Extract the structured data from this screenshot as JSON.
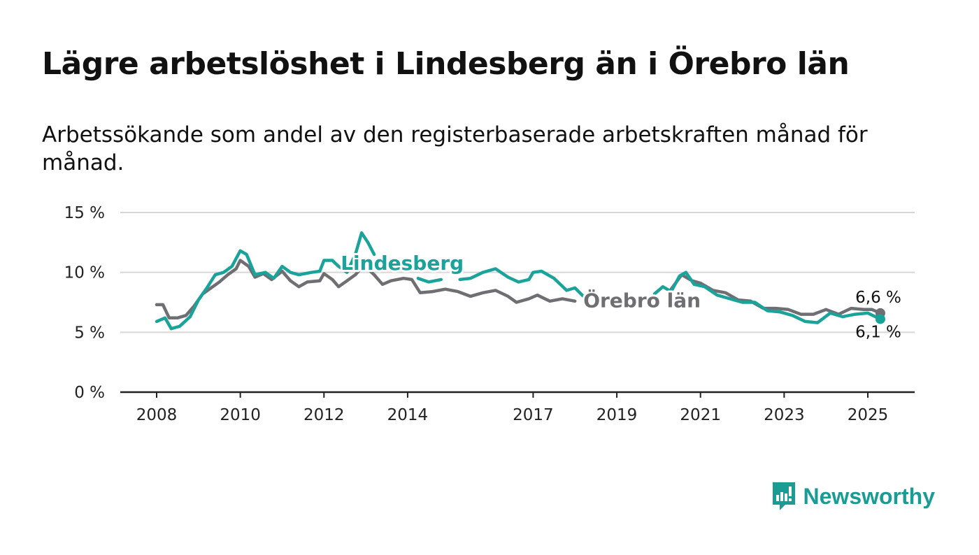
{
  "header": {
    "title": "Lägre arbetslöshet i Lindesberg än i Örebro län",
    "subtitle": "Arbetssökande som andel av den registerbaserade arbetskraften månad för månad."
  },
  "brand": {
    "name": "Newsworthy",
    "color": "#1a9c94",
    "icon": "bar-chart-bubble-icon"
  },
  "chart_data": {
    "type": "line",
    "y_ticks": [
      0,
      5,
      10,
      15
    ],
    "y_tick_labels": [
      "0 %",
      "5 %",
      "10 %",
      "15 %"
    ],
    "x_ticks": [
      2008,
      2010,
      2012,
      2014,
      2017,
      2019,
      2021,
      2023,
      2025
    ],
    "x_tick_labels": [
      "2008",
      "2010",
      "2012",
      "2014",
      "2017",
      "2019",
      "2021",
      "2023",
      "2025"
    ],
    "ylim": [
      0,
      15
    ],
    "xlim": [
      2007.2,
      2026.1
    ],
    "grid": true,
    "legend": "inline",
    "series": [
      {
        "name": "Örebro län",
        "color": "#6e6e73",
        "end_label": "6,6 %",
        "points": [
          [
            2008.0,
            7.3
          ],
          [
            2008.15,
            7.3
          ],
          [
            2008.3,
            6.2
          ],
          [
            2008.5,
            6.2
          ],
          [
            2008.7,
            6.4
          ],
          [
            2008.9,
            7.2
          ],
          [
            2009.1,
            8.2
          ],
          [
            2009.3,
            8.7
          ],
          [
            2009.5,
            9.2
          ],
          [
            2009.7,
            9.8
          ],
          [
            2009.9,
            10.3
          ],
          [
            2010.0,
            11.0
          ],
          [
            2010.2,
            10.5
          ],
          [
            2010.35,
            9.6
          ],
          [
            2010.55,
            9.9
          ],
          [
            2010.75,
            9.4
          ],
          [
            2011.0,
            10.1
          ],
          [
            2011.2,
            9.3
          ],
          [
            2011.4,
            8.8
          ],
          [
            2011.6,
            9.2
          ],
          [
            2011.9,
            9.3
          ],
          [
            2012.0,
            9.9
          ],
          [
            2012.2,
            9.4
          ],
          [
            2012.35,
            8.8
          ],
          [
            2012.55,
            9.3
          ],
          [
            2012.75,
            9.8
          ],
          [
            2012.95,
            10.6
          ],
          [
            2013.2,
            9.8
          ],
          [
            2013.4,
            9.0
          ],
          [
            2013.6,
            9.3
          ],
          [
            2013.9,
            9.5
          ],
          [
            2014.1,
            9.4
          ],
          [
            2014.3,
            8.3
          ],
          [
            2014.6,
            8.4
          ],
          [
            2014.9,
            8.6
          ],
          [
            2015.2,
            8.4
          ],
          [
            2015.5,
            8.0
          ],
          [
            2015.8,
            8.3
          ],
          [
            2016.1,
            8.5
          ],
          [
            2016.4,
            8.0
          ],
          [
            2016.6,
            7.5
          ],
          [
            2016.9,
            7.8
          ],
          [
            2017.1,
            8.1
          ],
          [
            2017.4,
            7.6
          ],
          [
            2017.7,
            7.8
          ],
          [
            2018.0,
            7.6
          ]
        ],
        "points_b": [
          [
            2020.3,
            8.6
          ],
          [
            2020.55,
            9.8
          ],
          [
            2020.8,
            9.3
          ],
          [
            2021.0,
            9.1
          ],
          [
            2021.3,
            8.5
          ],
          [
            2021.6,
            8.3
          ],
          [
            2021.9,
            7.7
          ],
          [
            2022.2,
            7.6
          ],
          [
            2022.5,
            7.0
          ],
          [
            2022.8,
            7.0
          ],
          [
            2023.1,
            6.9
          ],
          [
            2023.4,
            6.5
          ],
          [
            2023.7,
            6.5
          ],
          [
            2024.0,
            6.9
          ],
          [
            2024.3,
            6.5
          ],
          [
            2024.6,
            7.0
          ],
          [
            2024.9,
            6.9
          ],
          [
            2025.1,
            6.9
          ],
          [
            2025.3,
            6.6
          ]
        ]
      },
      {
        "name": "Lindesberg",
        "color": "#1aa39a",
        "end_label": "6,1 %",
        "points": [
          [
            2008.0,
            5.9
          ],
          [
            2008.2,
            6.2
          ],
          [
            2008.35,
            5.3
          ],
          [
            2008.55,
            5.5
          ],
          [
            2008.8,
            6.3
          ],
          [
            2009.0,
            7.7
          ],
          [
            2009.2,
            8.7
          ],
          [
            2009.4,
            9.8
          ],
          [
            2009.6,
            10.0
          ],
          [
            2009.8,
            10.5
          ],
          [
            2010.0,
            11.8
          ],
          [
            2010.15,
            11.5
          ],
          [
            2010.35,
            9.8
          ],
          [
            2010.6,
            10.0
          ],
          [
            2010.8,
            9.5
          ],
          [
            2011.0,
            10.5
          ],
          [
            2011.2,
            10.0
          ],
          [
            2011.4,
            9.8
          ],
          [
            2011.7,
            10.0
          ],
          [
            2011.9,
            10.1
          ],
          [
            2012.0,
            11.0
          ],
          [
            2012.2,
            11.0
          ],
          [
            2012.35,
            10.5
          ],
          [
            2012.55,
            10.0
          ],
          [
            2012.75,
            11.5
          ],
          [
            2012.9,
            13.3
          ],
          [
            2013.05,
            12.5
          ],
          [
            2013.2,
            11.5
          ]
        ],
        "points_b": [
          [
            2014.25,
            9.5
          ],
          [
            2014.5,
            9.2
          ],
          [
            2014.8,
            9.4
          ]
        ],
        "points_c": [
          [
            2015.25,
            9.4
          ],
          [
            2015.5,
            9.5
          ],
          [
            2015.8,
            10.0
          ],
          [
            2016.1,
            10.3
          ],
          [
            2016.4,
            9.6
          ],
          [
            2016.65,
            9.2
          ],
          [
            2016.9,
            9.4
          ],
          [
            2017.0,
            10.0
          ],
          [
            2017.2,
            10.1
          ],
          [
            2017.5,
            9.5
          ],
          [
            2017.8,
            8.5
          ],
          [
            2018.0,
            8.7
          ],
          [
            2018.2,
            8.0
          ]
        ],
        "points_d": [
          [
            2019.9,
            8.2
          ],
          [
            2020.1,
            8.8
          ],
          [
            2020.3,
            8.4
          ],
          [
            2020.5,
            9.7
          ],
          [
            2020.65,
            10.0
          ],
          [
            2020.85,
            9.0
          ],
          [
            2021.1,
            8.8
          ],
          [
            2021.4,
            8.1
          ],
          [
            2021.7,
            7.8
          ],
          [
            2022.0,
            7.5
          ],
          [
            2022.3,
            7.5
          ],
          [
            2022.6,
            6.8
          ],
          [
            2022.9,
            6.7
          ],
          [
            2023.2,
            6.4
          ],
          [
            2023.5,
            5.9
          ],
          [
            2023.8,
            5.8
          ],
          [
            2024.1,
            6.6
          ],
          [
            2024.4,
            6.3
          ],
          [
            2024.7,
            6.5
          ],
          [
            2025.0,
            6.6
          ],
          [
            2025.3,
            6.1
          ]
        ]
      }
    ],
    "inline_labels": [
      {
        "series": "Lindesberg",
        "text": "Lindesberg",
        "x": 2012.4,
        "y": 10.2
      },
      {
        "series": "Örebro län",
        "text": "Örebro län",
        "x": 2018.2,
        "y": 7.1
      }
    ]
  }
}
